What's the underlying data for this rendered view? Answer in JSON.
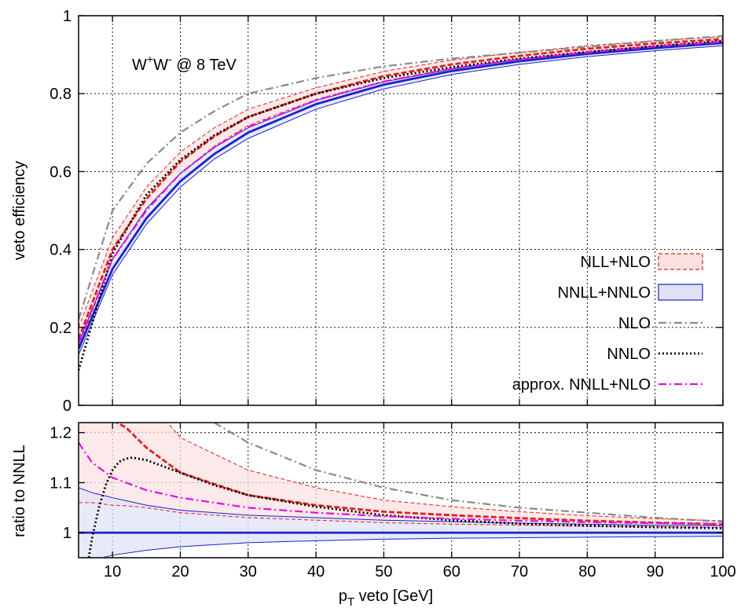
{
  "chart_data": [
    {
      "type": "line",
      "panel": "main",
      "annotation": {
        "base": "W",
        "sup1": "+",
        "mid": "W",
        "sup2": "-",
        "suffix": " @ 8 TeV"
      },
      "xlabel": {
        "main": "p",
        "sub": "T",
        "rest": " veto [GeV]"
      },
      "ylabel": "veto efficiency",
      "xlim": [
        5,
        100
      ],
      "ylim": [
        0,
        1
      ],
      "x_ticks": [
        10,
        20,
        30,
        40,
        50,
        60,
        70,
        80,
        90,
        100
      ],
      "y_ticks": [
        0,
        0.2,
        0.4,
        0.6,
        0.8,
        1
      ],
      "y_tick_labels": [
        "0",
        "0.2",
        "0.4",
        "0.6",
        "0.8",
        "1"
      ],
      "grid": true,
      "legend_position": "bottom-right",
      "series": [
        {
          "name": "NLL+NLO",
          "style": "band",
          "color": "#e32020",
          "fill": "#fbe1e1",
          "x": [
            5,
            10,
            15,
            20,
            25,
            30,
            40,
            50,
            60,
            70,
            80,
            90,
            100
          ],
          "central": [
            0.17,
            0.4,
            0.53,
            0.625,
            0.69,
            0.74,
            0.8,
            0.845,
            0.875,
            0.897,
            0.915,
            0.929,
            0.94
          ],
          "lower": [
            0.15,
            0.375,
            0.505,
            0.595,
            0.665,
            0.718,
            0.785,
            0.832,
            0.865,
            0.889,
            0.908,
            0.923,
            0.935
          ],
          "upper": [
            0.2,
            0.43,
            0.56,
            0.65,
            0.712,
            0.76,
            0.815,
            0.857,
            0.886,
            0.906,
            0.923,
            0.936,
            0.946
          ]
        },
        {
          "name": "NNLL+NNLO",
          "style": "band",
          "color": "#1a22cc",
          "fill": "#e0e3f7",
          "x": [
            5,
            10,
            15,
            20,
            25,
            30,
            40,
            50,
            60,
            70,
            80,
            90,
            100
          ],
          "central": [
            0.145,
            0.35,
            0.48,
            0.575,
            0.645,
            0.7,
            0.773,
            0.823,
            0.858,
            0.883,
            0.902,
            0.917,
            0.93
          ],
          "lower": [
            0.13,
            0.335,
            0.465,
            0.56,
            0.632,
            0.685,
            0.76,
            0.812,
            0.849,
            0.875,
            0.895,
            0.91,
            0.923
          ],
          "upper": [
            0.16,
            0.375,
            0.505,
            0.595,
            0.662,
            0.712,
            0.782,
            0.83,
            0.863,
            0.888,
            0.906,
            0.92,
            0.932
          ]
        },
        {
          "name": "NLO",
          "style": "dashdot",
          "color": "#8a8a8a",
          "x": [
            5,
            10,
            15,
            20,
            25,
            30,
            40,
            50,
            60,
            70,
            80,
            90,
            100
          ],
          "values": [
            0.22,
            0.5,
            0.62,
            0.7,
            0.755,
            0.8,
            0.84,
            0.87,
            0.89,
            0.905,
            0.92,
            0.935,
            0.948
          ]
        },
        {
          "name": "NNLO",
          "style": "dotted",
          "color": "#000000",
          "x": [
            5,
            10,
            15,
            20,
            25,
            30,
            40,
            50,
            60,
            70,
            80,
            90,
            100
          ],
          "values": [
            0.09,
            0.39,
            0.54,
            0.63,
            0.693,
            0.74,
            0.8,
            0.84,
            0.868,
            0.89,
            0.907,
            0.922,
            0.935
          ]
        },
        {
          "name": "approx. NNLL+NLO",
          "style": "dashdot",
          "color": "#e010e0",
          "x": [
            5,
            10,
            15,
            20,
            25,
            30,
            40,
            50,
            60,
            70,
            80,
            90,
            100
          ],
          "values": [
            0.16,
            0.375,
            0.5,
            0.595,
            0.662,
            0.714,
            0.783,
            0.831,
            0.864,
            0.888,
            0.906,
            0.921,
            0.933
          ]
        }
      ]
    },
    {
      "type": "line",
      "panel": "ratio",
      "ylabel": "ratio to NNLL",
      "xlim": [
        5,
        100
      ],
      "ylim": [
        0.95,
        1.22
      ],
      "x_ticks": [
        10,
        20,
        30,
        40,
        50,
        60,
        70,
        80,
        90,
        100
      ],
      "y_ticks": [
        1,
        1.1,
        1.2
      ],
      "y_tick_labels": [
        "1",
        "1.1",
        "1.2"
      ],
      "grid": true,
      "series": [
        {
          "name": "NLL+NLO",
          "style": "band",
          "color": "#e32020",
          "fill": "#fbe1e1",
          "x": [
            5,
            7,
            10,
            12,
            15,
            20,
            30,
            40,
            50,
            60,
            70,
            80,
            90,
            100
          ],
          "central": [
            1.26,
            1.25,
            1.225,
            1.21,
            1.17,
            1.12,
            1.075,
            1.055,
            1.042,
            1.035,
            1.029,
            1.024,
            1.02,
            1.017
          ],
          "lower": [
            1.06,
            1.06,
            1.055,
            1.054,
            1.05,
            1.04,
            1.03,
            1.025,
            1.02,
            1.017,
            1.015,
            1.013,
            1.012,
            1.01
          ],
          "upper": [
            1.3,
            1.3,
            1.3,
            1.29,
            1.27,
            1.19,
            1.125,
            1.09,
            1.065,
            1.052,
            1.042,
            1.034,
            1.028,
            1.024
          ]
        },
        {
          "name": "NNLL+NNLO",
          "style": "band",
          "color": "#1a22cc",
          "fill": "#e0e3f7",
          "x": [
            5,
            7,
            10,
            15,
            20,
            30,
            40,
            50,
            60,
            70,
            80,
            90,
            100
          ],
          "central": [
            1,
            1,
            1,
            1,
            1,
            1,
            1,
            1,
            1,
            1,
            1,
            1,
            1
          ],
          "lower": [
            0.93,
            0.945,
            0.955,
            0.965,
            0.972,
            0.98,
            0.984,
            0.987,
            0.989,
            0.99,
            0.991,
            0.992,
            0.993
          ],
          "upper": [
            1.09,
            1.08,
            1.07,
            1.055,
            1.045,
            1.035,
            1.03,
            1.025,
            1.022,
            1.019,
            1.017,
            1.015,
            1.014
          ]
        },
        {
          "name": "NLO",
          "style": "dashdot",
          "color": "#8a8a8a",
          "x": [
            25,
            30,
            40,
            50,
            60,
            70,
            80,
            90,
            100
          ],
          "values": [
            1.22,
            1.18,
            1.125,
            1.09,
            1.065,
            1.05,
            1.04,
            1.03,
            1.022
          ]
        },
        {
          "name": "NNLO",
          "style": "dotted",
          "color": "#000000",
          "x": [
            6.5,
            7,
            8,
            9,
            10,
            11,
            12,
            13,
            15,
            18,
            20,
            25,
            30,
            40,
            50,
            60,
            70,
            80,
            90,
            100
          ],
          "values": [
            0.95,
            0.99,
            1.05,
            1.095,
            1.125,
            1.142,
            1.148,
            1.15,
            1.145,
            1.13,
            1.12,
            1.095,
            1.075,
            1.052,
            1.035,
            1.025,
            1.018,
            1.014,
            1.011,
            1.009
          ]
        },
        {
          "name": "approx. NNLL+NLO",
          "style": "dashdot",
          "color": "#e010e0",
          "x": [
            5,
            7,
            10,
            15,
            20,
            30,
            40,
            50,
            60,
            70,
            80,
            90,
            100
          ],
          "values": [
            1.18,
            1.14,
            1.11,
            1.085,
            1.07,
            1.05,
            1.04,
            1.033,
            1.028,
            1.024,
            1.021,
            1.019,
            1.017
          ]
        }
      ]
    }
  ]
}
